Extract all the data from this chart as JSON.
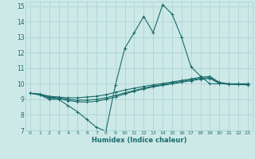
{
  "xlabel": "Humidex (Indice chaleur)",
  "xlim": [
    -0.5,
    23.5
  ],
  "ylim": [
    7,
    15.3
  ],
  "yticks": [
    7,
    8,
    9,
    10,
    11,
    12,
    13,
    14,
    15
  ],
  "xticks": [
    0,
    1,
    2,
    3,
    4,
    5,
    6,
    7,
    8,
    9,
    10,
    11,
    12,
    13,
    14,
    15,
    16,
    17,
    18,
    19,
    20,
    21,
    22,
    23
  ],
  "bg_color": "#cce9e8",
  "grid_color": "#aacfcf",
  "line_color": "#1a6b6b",
  "series": [
    {
      "x": [
        0,
        1,
        2,
        3,
        4,
        5,
        6,
        7,
        8,
        9,
        10,
        11,
        12,
        13,
        14,
        15,
        16,
        17,
        18,
        19,
        20,
        21,
        22,
        23
      ],
      "y": [
        9.4,
        9.3,
        9.0,
        9.0,
        8.6,
        8.2,
        7.7,
        7.2,
        6.95,
        9.9,
        12.3,
        13.3,
        14.35,
        13.3,
        15.1,
        14.5,
        13.0,
        11.1,
        10.5,
        10.0,
        10.0,
        10.0,
        10.0,
        10.0
      ]
    },
    {
      "x": [
        0,
        1,
        2,
        3,
        4,
        5,
        6,
        7,
        8,
        9,
        10,
        11,
        12,
        13,
        14,
        15,
        16,
        17,
        18,
        19,
        20,
        21,
        22,
        23
      ],
      "y": [
        9.4,
        9.35,
        9.2,
        9.15,
        9.1,
        9.1,
        9.15,
        9.2,
        9.3,
        9.45,
        9.6,
        9.72,
        9.83,
        9.93,
        10.02,
        10.12,
        10.22,
        10.32,
        10.42,
        10.48,
        10.1,
        10.0,
        10.0,
        10.0
      ]
    },
    {
      "x": [
        0,
        1,
        2,
        3,
        4,
        5,
        6,
        7,
        8,
        9,
        10,
        11,
        12,
        13,
        14,
        15,
        16,
        17,
        18,
        19,
        20,
        21,
        22,
        23
      ],
      "y": [
        9.4,
        9.32,
        9.15,
        9.1,
        9.0,
        8.95,
        8.95,
        9.0,
        9.1,
        9.25,
        9.42,
        9.57,
        9.72,
        9.85,
        9.95,
        10.05,
        10.15,
        10.25,
        10.35,
        10.4,
        10.05,
        9.98,
        9.97,
        9.95
      ]
    },
    {
      "x": [
        0,
        1,
        2,
        3,
        4,
        5,
        6,
        7,
        8,
        9,
        10,
        11,
        12,
        13,
        14,
        15,
        16,
        17,
        18,
        19,
        20,
        21,
        22,
        23
      ],
      "y": [
        9.4,
        9.28,
        9.1,
        9.05,
        8.92,
        8.85,
        8.82,
        8.88,
        9.0,
        9.15,
        9.35,
        9.52,
        9.67,
        9.8,
        9.9,
        10.0,
        10.1,
        10.2,
        10.3,
        10.35,
        10.02,
        9.97,
        9.95,
        9.93
      ]
    }
  ]
}
